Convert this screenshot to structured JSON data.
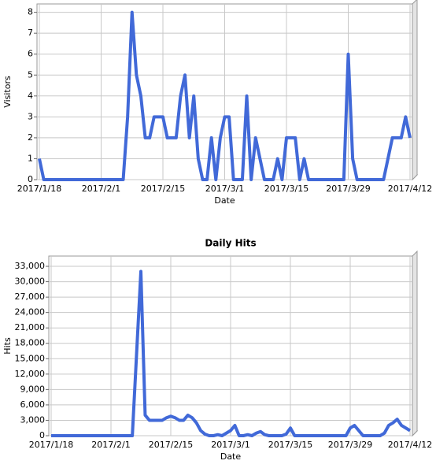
{
  "chart_data": [
    {
      "type": "line",
      "y_label": "Visitors",
      "x_label": "Date",
      "categories": [
        "2017/1/18",
        null,
        null,
        null,
        null,
        null,
        null,
        null,
        null,
        null,
        null,
        null,
        null,
        null,
        "2017/2/1",
        null,
        null,
        null,
        null,
        null,
        null,
        null,
        null,
        null,
        null,
        null,
        null,
        null,
        "2017/2/15",
        null,
        null,
        null,
        null,
        null,
        null,
        null,
        null,
        null,
        null,
        null,
        null,
        null,
        "2017/3/1",
        null,
        null,
        null,
        null,
        null,
        null,
        null,
        null,
        null,
        null,
        null,
        null,
        null,
        "2017/3/15",
        null,
        null,
        null,
        null,
        null,
        null,
        null,
        null,
        null,
        null,
        null,
        null,
        null,
        "2017/3/29",
        null,
        null,
        null,
        null,
        null,
        null,
        null,
        null,
        null,
        null,
        null,
        null,
        null,
        "2017/4/12"
      ],
      "series": [
        {
          "name": "Visitors",
          "color": "#4169d8",
          "values": [
            1,
            0,
            0,
            0,
            0,
            0,
            0,
            0,
            0,
            0,
            0,
            0,
            0,
            0,
            0,
            0,
            0,
            0,
            0,
            0,
            3,
            8,
            5,
            4,
            2,
            2,
            3,
            3,
            3,
            2,
            2,
            2,
            4,
            5,
            2,
            4,
            1,
            0,
            0,
            2,
            0,
            2,
            3,
            3,
            0,
            0,
            0,
            4,
            0,
            2,
            1,
            0,
            0,
            0,
            1,
            0,
            2,
            2,
            2,
            0,
            1,
            0,
            0,
            0,
            0,
            0,
            0,
            0,
            0,
            0,
            6,
            1,
            0,
            0,
            0,
            0,
            0,
            0,
            0,
            1,
            2,
            2,
            2,
            3,
            2
          ]
        }
      ],
      "ylim": [
        0,
        8.4
      ],
      "yticks": [
        0,
        1,
        2,
        3,
        4,
        5,
        6,
        7,
        8
      ],
      "grid": true
    },
    {
      "type": "line",
      "title": "Daily Hits",
      "y_label": "Hits",
      "x_label": "Date",
      "categories": [
        "2017/1/18",
        null,
        null,
        null,
        null,
        null,
        null,
        null,
        null,
        null,
        null,
        null,
        null,
        null,
        "2017/2/1",
        null,
        null,
        null,
        null,
        null,
        null,
        null,
        null,
        null,
        null,
        null,
        null,
        null,
        "2017/2/15",
        null,
        null,
        null,
        null,
        null,
        null,
        null,
        null,
        null,
        null,
        null,
        null,
        null,
        "2017/3/1",
        null,
        null,
        null,
        null,
        null,
        null,
        null,
        null,
        null,
        null,
        null,
        null,
        null,
        "2017/3/15",
        null,
        null,
        null,
        null,
        null,
        null,
        null,
        null,
        null,
        null,
        null,
        null,
        null,
        "2017/3/29",
        null,
        null,
        null,
        null,
        null,
        null,
        null,
        null,
        null,
        null,
        null,
        null,
        null,
        "2017/4/12"
      ],
      "series": [
        {
          "name": "Hits",
          "color": "#4169d8",
          "values": [
            0,
            0,
            0,
            0,
            0,
            0,
            0,
            0,
            0,
            0,
            0,
            0,
            0,
            0,
            0,
            0,
            0,
            0,
            0,
            0,
            16000,
            32000,
            4000,
            3000,
            3000,
            3000,
            3000,
            3500,
            3800,
            3500,
            3000,
            3000,
            4000,
            3500,
            2500,
            1000,
            300,
            0,
            0,
            200,
            0,
            500,
            1000,
            2000,
            0,
            0,
            200,
            0,
            500,
            800,
            200,
            0,
            0,
            0,
            0,
            300,
            1500,
            0,
            0,
            0,
            0,
            0,
            0,
            0,
            0,
            0,
            0,
            0,
            0,
            0,
            1500,
            2000,
            1000,
            0,
            0,
            0,
            0,
            0,
            500,
            2000,
            2500,
            3200,
            2000,
            1500,
            1000
          ]
        }
      ],
      "ylim": [
        0,
        35000
      ],
      "yticks": [
        0,
        {
          "value": 3000,
          "label": "3,000"
        },
        {
          "value": 6000,
          "label": "6,000"
        },
        {
          "value": 9000,
          "label": "9,000"
        },
        {
          "value": 12000,
          "label": "12,000"
        },
        {
          "value": 15000,
          "label": "15,000"
        },
        {
          "value": 18000,
          "label": "18,000"
        },
        {
          "value": 21000,
          "label": "21,000"
        },
        {
          "value": 24000,
          "label": "24,000"
        },
        {
          "value": 27000,
          "label": "27,000"
        },
        {
          "value": 30000,
          "label": "30,000"
        },
        {
          "value": 33000,
          "label": "33,000"
        }
      ],
      "grid": true
    }
  ]
}
